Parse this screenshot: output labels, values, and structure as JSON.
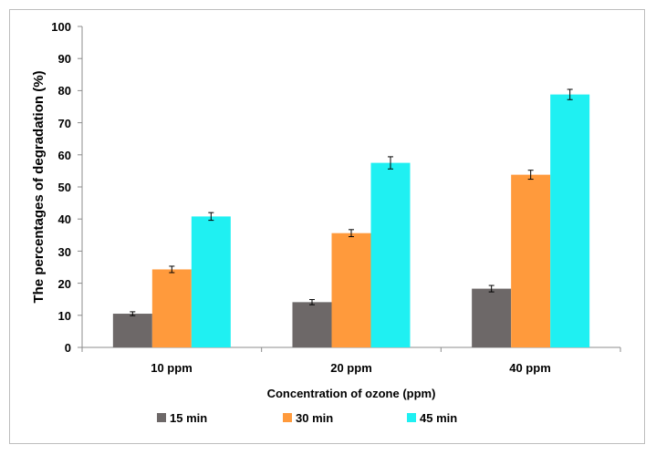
{
  "chart_data": {
    "type": "bar",
    "categories": [
      "10 ppm",
      "20 ppm",
      "40 ppm"
    ],
    "series": [
      {
        "name": "15 min",
        "color": "#6d6868",
        "values": [
          10.5,
          14.1,
          18.3
        ],
        "errors": [
          0.6,
          0.8,
          1.0
        ]
      },
      {
        "name": "30 min",
        "color": "#ff9a3c",
        "values": [
          24.3,
          35.6,
          53.8
        ],
        "errors": [
          1.0,
          1.1,
          1.4
        ]
      },
      {
        "name": "45 min",
        "color": "#1ff0f2",
        "values": [
          40.8,
          57.5,
          78.8
        ],
        "errors": [
          1.2,
          1.9,
          1.6
        ]
      }
    ],
    "xlabel": "Concentration of ozone (ppm)",
    "ylabel": "The percentages of degradation (%)",
    "ylim": [
      0,
      100
    ],
    "yticks": [
      "0",
      "10",
      "20",
      "30",
      "40",
      "50",
      "60",
      "70",
      "80",
      "90",
      "100"
    ],
    "grid": false,
    "legend_position": "bottom"
  }
}
